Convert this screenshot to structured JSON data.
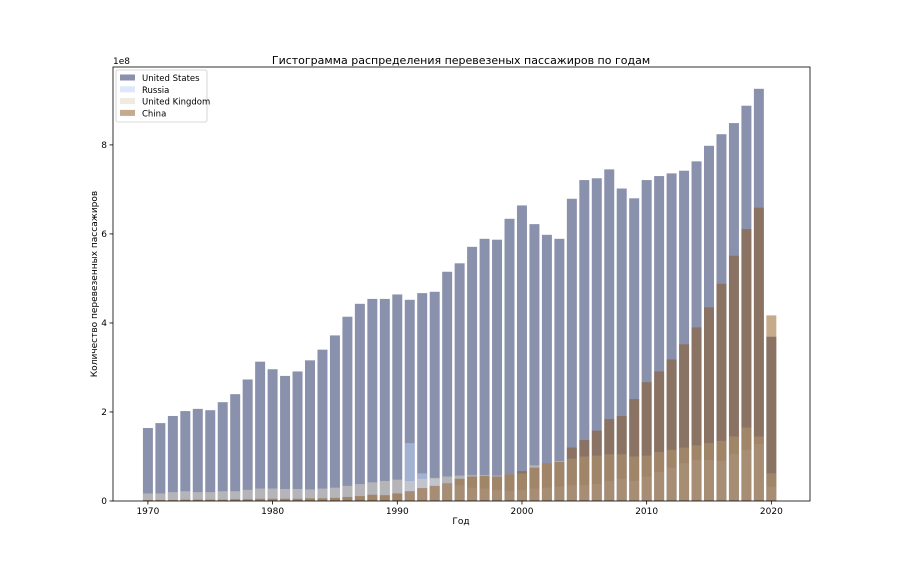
{
  "chart_data": {
    "type": "bar",
    "title": "Гистограмма распределения перевезеных пассажиров по годам",
    "xlabel": "Год",
    "ylabel": "Количество перевезенных пассажиров",
    "y_offset_label": "1e8",
    "y_scale": 100000000,
    "xlim": [
      1967.2,
      2023.1
    ],
    "ylim": [
      0,
      9.75
    ],
    "x_ticks": [
      1970,
      1980,
      1990,
      2000,
      2010,
      2020
    ],
    "y_ticks": [
      0,
      2,
      4,
      6,
      8
    ],
    "legend_position": "top-left",
    "grid": false,
    "x": [
      1970,
      1971,
      1972,
      1973,
      1974,
      1975,
      1976,
      1977,
      1978,
      1979,
      1980,
      1981,
      1982,
      1983,
      1984,
      1985,
      1986,
      1987,
      1988,
      1989,
      1990,
      1991,
      1992,
      1993,
      1994,
      1995,
      1996,
      1997,
      1998,
      1999,
      2000,
      2001,
      2002,
      2003,
      2004,
      2005,
      2006,
      2007,
      2008,
      2009,
      2010,
      2011,
      2012,
      2013,
      2014,
      2015,
      2016,
      2017,
      2018,
      2019,
      2020
    ],
    "series": [
      {
        "name": "United States",
        "color": "#16245a",
        "values": [
          1.64,
          1.75,
          1.91,
          2.02,
          2.07,
          2.04,
          2.22,
          2.4,
          2.73,
          3.13,
          2.96,
          2.81,
          2.91,
          3.16,
          3.4,
          3.72,
          4.14,
          4.43,
          4.54,
          4.54,
          4.64,
          4.52,
          4.67,
          4.7,
          5.15,
          5.34,
          5.71,
          5.89,
          5.87,
          6.34,
          6.64,
          6.22,
          5.98,
          5.89,
          6.79,
          7.21,
          7.25,
          7.45,
          7.02,
          6.8,
          7.21,
          7.3,
          7.36,
          7.42,
          7.63,
          7.98,
          8.24,
          8.49,
          8.88,
          9.26,
          3.69
        ]
      },
      {
        "name": "Russia",
        "color": "#bbd1f7",
        "values": [
          0,
          0,
          0,
          0,
          0,
          0,
          0,
          0,
          0,
          0,
          0,
          0,
          0,
          0,
          0,
          0,
          0,
          0,
          0,
          0,
          0,
          1.3,
          0.62,
          0.5,
          0.4,
          0.35,
          0.3,
          0.28,
          0.25,
          0.23,
          0.25,
          0.28,
          0.3,
          0.32,
          0.35,
          0.36,
          0.38,
          0.45,
          0.5,
          0.45,
          0.55,
          0.65,
          0.75,
          0.85,
          0.92,
          0.92,
          0.9,
          1.05,
          1.15,
          1.28,
          0.32
        ]
      },
      {
        "name": "United Kingdom",
        "color": "#dfd7c5",
        "values": [
          0.17,
          0.17,
          0.2,
          0.22,
          0.2,
          0.2,
          0.22,
          0.22,
          0.25,
          0.28,
          0.28,
          0.27,
          0.27,
          0.26,
          0.28,
          0.3,
          0.34,
          0.38,
          0.42,
          0.45,
          0.48,
          0.45,
          0.5,
          0.52,
          0.55,
          0.57,
          0.58,
          0.58,
          0.57,
          0.6,
          0.62,
          0.8,
          0.85,
          0.9,
          0.95,
          1.0,
          1.02,
          1.05,
          1.05,
          1.0,
          1.02,
          1.1,
          1.15,
          1.2,
          1.25,
          1.3,
          1.35,
          1.45,
          1.65,
          1.45,
          0.62
        ]
      },
      {
        "name": "China",
        "color": "#8b5519",
        "values": [
          0.02,
          0.02,
          0.02,
          0.03,
          0.03,
          0.03,
          0.03,
          0.04,
          0.04,
          0.05,
          0.05,
          0.05,
          0.05,
          0.06,
          0.06,
          0.07,
          0.09,
          0.11,
          0.14,
          0.13,
          0.17,
          0.22,
          0.29,
          0.34,
          0.4,
          0.5,
          0.55,
          0.56,
          0.55,
          0.6,
          0.67,
          0.75,
          0.85,
          0.88,
          1.2,
          1.37,
          1.58,
          1.84,
          1.91,
          2.29,
          2.67,
          2.91,
          3.18,
          3.52,
          3.9,
          4.35,
          4.88,
          5.51,
          6.11,
          6.59,
          4.17
        ]
      }
    ]
  }
}
